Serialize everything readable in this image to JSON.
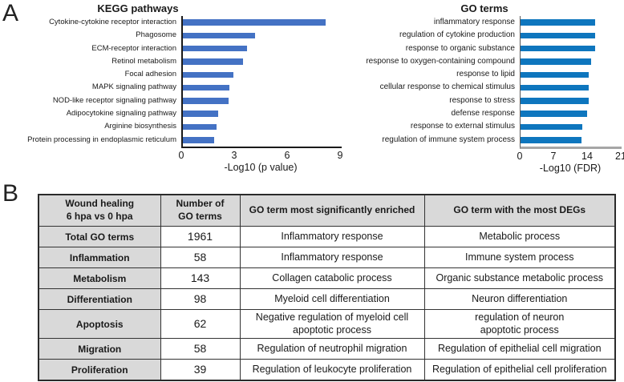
{
  "panels": {
    "a": "A",
    "b": "B"
  },
  "chart_data": [
    {
      "type": "bar",
      "orientation": "horizontal",
      "title": "KEGG pathways",
      "categories": [
        "Cytokine-cytokine receptor interaction",
        "Phagosome",
        "ECM-receptor interaction",
        "Retinol metabolism",
        "Focal adhesion",
        "MAPK signaling pathway",
        "NOD-like receptor signaling pathway",
        "Adipocytokine signaling pathway",
        "Arginine biosynthesis",
        "Protein processing in endoplasmic reticulum"
      ],
      "values": [
        8.1,
        4.1,
        3.65,
        3.4,
        2.85,
        2.65,
        2.6,
        2.0,
        1.9,
        1.75
      ],
      "xlabel": "-Log10 (p value)",
      "xticks": [
        "0",
        "3",
        "6",
        "9"
      ],
      "xlim": [
        0,
        9
      ],
      "bar_color": "#4472C4",
      "grid": false,
      "legend": "none"
    },
    {
      "type": "bar",
      "orientation": "horizontal",
      "title": "GO terms",
      "categories": [
        "inflammatory response",
        "regulation of cytokine production",
        "response to organic substance",
        "response to oxygen-containing compound",
        "response to lipid",
        "cellular response to chemical stimulus",
        "response to stress",
        "defense response",
        "response to external stimulus",
        "regulation of immune system process"
      ],
      "values": [
        15.5,
        15.5,
        15.5,
        14.6,
        14.1,
        14.2,
        14.1,
        13.9,
        12.8,
        12.7
      ],
      "xlabel": "-Log10 (FDR)",
      "xticks": [
        "0",
        "7",
        "14",
        "21"
      ],
      "xlim": [
        0,
        21
      ],
      "bar_color": "#0E76BE",
      "grid": false,
      "legend": "none"
    }
  ],
  "table": {
    "headers": [
      "Wound healing\n6 hpa vs 0 hpa",
      "Number of\nGO terms",
      "GO term most significantly enriched",
      "GO term with the most DEGs"
    ],
    "rows": [
      [
        "Total GO terms",
        "1961",
        "Inflammatory response",
        "Metabolic process"
      ],
      [
        "Inflammation",
        "58",
        "Inflammatory response",
        "Immune system process"
      ],
      [
        "Metabolism",
        "143",
        "Collagen catabolic process",
        "Organic substance metabolic process"
      ],
      [
        "Differentiation",
        "98",
        "Myeloid cell differentiation",
        "Neuron differentiation"
      ],
      [
        "Apoptosis",
        "62",
        "Negative regulation of myeloid cell\napoptotic process",
        "regulation of neuron\napoptotic process"
      ],
      [
        "Migration",
        "58",
        "Regulation of neutrophil migration",
        "Regulation of epithelial cell migration"
      ],
      [
        "Proliferation",
        "39",
        "Regulation of leukocyte proliferation",
        "Regulation of epithelial cell proliferation"
      ]
    ],
    "colors": {
      "header_fill": "#d9d9d9",
      "border": "#333333"
    }
  }
}
